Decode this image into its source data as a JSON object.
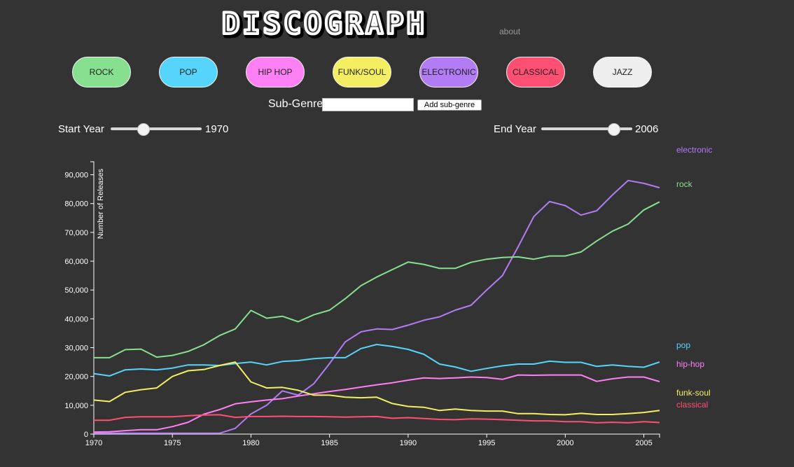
{
  "header": {
    "logo_text": "DISCOGRAPH",
    "about_label": "about"
  },
  "genres": [
    {
      "label": "ROCK",
      "color": "#86e090"
    },
    {
      "label": "POP",
      "color": "#56d4fb"
    },
    {
      "label": "HIP HOP",
      "color": "#ff7ff4"
    },
    {
      "label": "FUNK/SOUL",
      "color": "#f4ee62"
    },
    {
      "label": "ELECTRONIC",
      "color": "#b27cf5"
    },
    {
      "label": "CLASSICAL",
      "color": "#ff4f73"
    },
    {
      "label": "JAZZ",
      "color": "#eeeeee"
    }
  ],
  "subgenre": {
    "label": "Sub-Genre",
    "input_value": "",
    "button_label": "Add sub-genre"
  },
  "start_year": {
    "label": "Start Year",
    "value": "1970",
    "slider_fraction": 0.35
  },
  "end_year": {
    "label": "End Year",
    "value": "2006",
    "slider_fraction": 0.79
  },
  "chart_data": {
    "type": "line",
    "ylabel": "Number of Releases",
    "xlim": [
      1970,
      2006
    ],
    "ylim": [
      0,
      95000
    ],
    "x_ticks": [
      1970,
      1975,
      1980,
      1985,
      1990,
      1995,
      2000,
      2005
    ],
    "y_ticks": [
      0,
      10000,
      20000,
      30000,
      40000,
      50000,
      60000,
      70000,
      80000,
      90000
    ],
    "x": [
      1970,
      1971,
      1972,
      1973,
      1974,
      1975,
      1976,
      1977,
      1978,
      1979,
      1980,
      1981,
      1982,
      1983,
      1984,
      1985,
      1986,
      1987,
      1988,
      1989,
      1990,
      1991,
      1992,
      1993,
      1994,
      1995,
      1996,
      1997,
      1998,
      1999,
      2000,
      2001,
      2002,
      2003,
      2004,
      2005,
      2006
    ],
    "series": [
      {
        "name": "electronic",
        "color": "#b27cf5",
        "values": [
          300,
          300,
          300,
          300,
          300,
          300,
          300,
          300,
          300,
          2000,
          7000,
          10000,
          15000,
          13500,
          17500,
          24500,
          32000,
          35500,
          36500,
          36300,
          37800,
          39500,
          40700,
          43000,
          44700,
          50000,
          55000,
          65000,
          75500,
          80700,
          79300,
          76000,
          77500,
          83000,
          88000,
          87000,
          85500
        ]
      },
      {
        "name": "rock",
        "color": "#86e090",
        "values": [
          26500,
          26500,
          29300,
          29500,
          26700,
          27300,
          28700,
          31000,
          34200,
          36500,
          42900,
          40200,
          40900,
          39000,
          41400,
          43000,
          47000,
          51500,
          54500,
          57100,
          59700,
          58900,
          57500,
          57500,
          59600,
          60700,
          61300,
          61500,
          60700,
          61800,
          61800,
          63200,
          67000,
          70400,
          72900,
          77800,
          80600
        ]
      },
      {
        "name": "pop",
        "color": "#56d4fb",
        "values": [
          21000,
          20200,
          22300,
          22600,
          22300,
          22900,
          24000,
          24000,
          23800,
          24500,
          25000,
          24000,
          25200,
          25500,
          26200,
          26500,
          26500,
          29700,
          31100,
          30400,
          29400,
          27700,
          24300,
          23300,
          21800,
          22800,
          23700,
          24300,
          24300,
          25300,
          24900,
          24900,
          23500,
          24000,
          23500,
          23200,
          25000
        ]
      },
      {
        "name": "hip-hop",
        "color": "#ff7ff4",
        "values": [
          700,
          800,
          1200,
          1500,
          1500,
          2600,
          4100,
          6900,
          8500,
          10500,
          11200,
          11800,
          12300,
          13200,
          14000,
          14800,
          15500,
          16300,
          17100,
          17800,
          18700,
          19500,
          19300,
          19500,
          19800,
          19600,
          19000,
          20500,
          20400,
          20500,
          20500,
          20500,
          18300,
          19200,
          19800,
          19800,
          18200
        ]
      },
      {
        "name": "funk-soul",
        "color": "#f4ee62",
        "values": [
          11800,
          11300,
          14500,
          15400,
          16000,
          20000,
          22000,
          22400,
          23800,
          25000,
          18100,
          16000,
          16200,
          15200,
          13500,
          13500,
          12800,
          12600,
          12800,
          10600,
          9600,
          9300,
          8200,
          8700,
          8200,
          8000,
          8000,
          7100,
          7100,
          6800,
          6700,
          7200,
          6800,
          6800,
          7100,
          7500,
          8200
        ]
      },
      {
        "name": "classical",
        "color": "#ff4f73",
        "values": [
          4800,
          4800,
          5800,
          6000,
          6000,
          6000,
          6400,
          6600,
          6700,
          5800,
          6100,
          6100,
          6200,
          6100,
          6100,
          6000,
          5900,
          6000,
          6100,
          5500,
          5700,
          5400,
          5100,
          5000,
          5300,
          5200,
          5000,
          4800,
          4600,
          4600,
          4300,
          4300,
          3900,
          4100,
          3900,
          4300,
          4000
        ]
      }
    ]
  }
}
